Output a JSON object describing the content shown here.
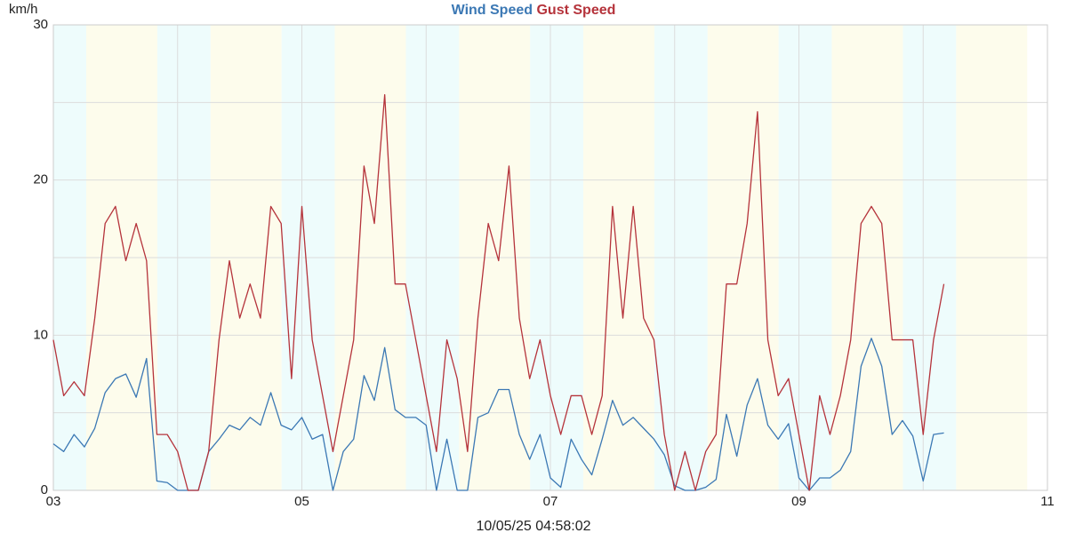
{
  "chart_data": {
    "type": "line",
    "y_label": "km/h",
    "footer": "10/05/25 04:58:02",
    "x": [
      3,
      3.0833,
      3.1667,
      3.25,
      3.3333,
      3.4167,
      3.5,
      3.5833,
      3.6667,
      3.75,
      3.8333,
      3.9167,
      4,
      4.0833,
      4.1667,
      4.25,
      4.3333,
      4.4167,
      4.5,
      4.5833,
      4.6667,
      4.75,
      4.8333,
      4.9167,
      5,
      5.0833,
      5.1667,
      5.25,
      5.3333,
      5.4167,
      5.5,
      5.5833,
      5.6667,
      5.75,
      5.8333,
      5.9167,
      6,
      6.0833,
      6.1667,
      6.25,
      6.3333,
      6.4167,
      6.5,
      6.5833,
      6.6667,
      6.75,
      6.8333,
      6.9167,
      7,
      7.0833,
      7.1667,
      7.25,
      7.3333,
      7.4167,
      7.5,
      7.5833,
      7.6667,
      7.75,
      7.8333,
      7.9167,
      8,
      8.0833,
      8.1667,
      8.25,
      8.3333,
      8.4167,
      8.5,
      8.5833,
      8.6667,
      8.75,
      8.8333,
      8.9167,
      9,
      9.0833,
      9.1667,
      9.25,
      9.3333,
      9.4167,
      9.5,
      9.5833,
      9.6667,
      9.75,
      9.8333,
      9.9167,
      10,
      10.0833,
      10.1667
    ],
    "series": [
      {
        "name": "Wind Speed",
        "color": "#3b78b4",
        "values": [
          3,
          2.5,
          3.6,
          2.8,
          4,
          6.3,
          7.2,
          7.5,
          6,
          8.5,
          0.6,
          0.5,
          0,
          0,
          0,
          2.5,
          3.3,
          4.2,
          3.9,
          4.7,
          4.2,
          6.3,
          4.2,
          3.9,
          4.7,
          3.3,
          3.6,
          0,
          2.5,
          3.3,
          7.4,
          5.8,
          9.2,
          5.2,
          4.7,
          4.7,
          4.2,
          0,
          3.3,
          0,
          0,
          4.7,
          5,
          6.5,
          6.5,
          3.6,
          2,
          3.6,
          0.8,
          0.2,
          3.3,
          2,
          1,
          3.3,
          5.8,
          4.2,
          4.7,
          4,
          3.3,
          2.3,
          0.3,
          0,
          0,
          0.2,
          0.7,
          4.9,
          2.2,
          5.5,
          7.2,
          4.2,
          3.3,
          4.3,
          0.8,
          0,
          0.8,
          0.8,
          1.3,
          2.5,
          8,
          9.8,
          8,
          3.6,
          4.5,
          3.5,
          0.6,
          3.6,
          3.7
        ]
      },
      {
        "name": "Gust Speed",
        "color": "#b5333b",
        "values": [
          9.7,
          6.1,
          7,
          6.1,
          11.1,
          17.2,
          18.3,
          14.8,
          17.2,
          14.8,
          3.6,
          3.6,
          2.5,
          0,
          0,
          2.5,
          9.7,
          14.8,
          11.1,
          13.3,
          11.1,
          18.3,
          17.2,
          7.2,
          18.3,
          9.7,
          6.1,
          2.5,
          6.1,
          9.7,
          20.9,
          17.2,
          25.5,
          13.3,
          13.3,
          9.7,
          6.1,
          2.5,
          9.7,
          7.2,
          2.5,
          11.1,
          17.2,
          14.8,
          20.9,
          11.1,
          7.2,
          9.7,
          6.1,
          3.6,
          6.1,
          6.1,
          3.6,
          6.1,
          18.3,
          11.1,
          18.3,
          11.1,
          9.7,
          3.6,
          0,
          2.5,
          0,
          2.5,
          3.6,
          13.3,
          13.3,
          17.2,
          24.4,
          9.7,
          6.1,
          7.2,
          3.6,
          0,
          6.1,
          3.6,
          6.1,
          9.7,
          17.2,
          18.3,
          17.2,
          9.7,
          9.7,
          9.7,
          3.6,
          9.7,
          13.3
        ]
      }
    ],
    "xlim": [
      3,
      11
    ],
    "xticks": [
      {
        "value": 3,
        "label": "03"
      },
      {
        "value": 5,
        "label": "05"
      },
      {
        "value": 7,
        "label": "07"
      },
      {
        "value": 9,
        "label": "09"
      },
      {
        "value": 11,
        "label": "11"
      }
    ],
    "ylim": [
      0,
      30
    ],
    "yticks": [
      0,
      10,
      20,
      30
    ],
    "grid": true
  }
}
